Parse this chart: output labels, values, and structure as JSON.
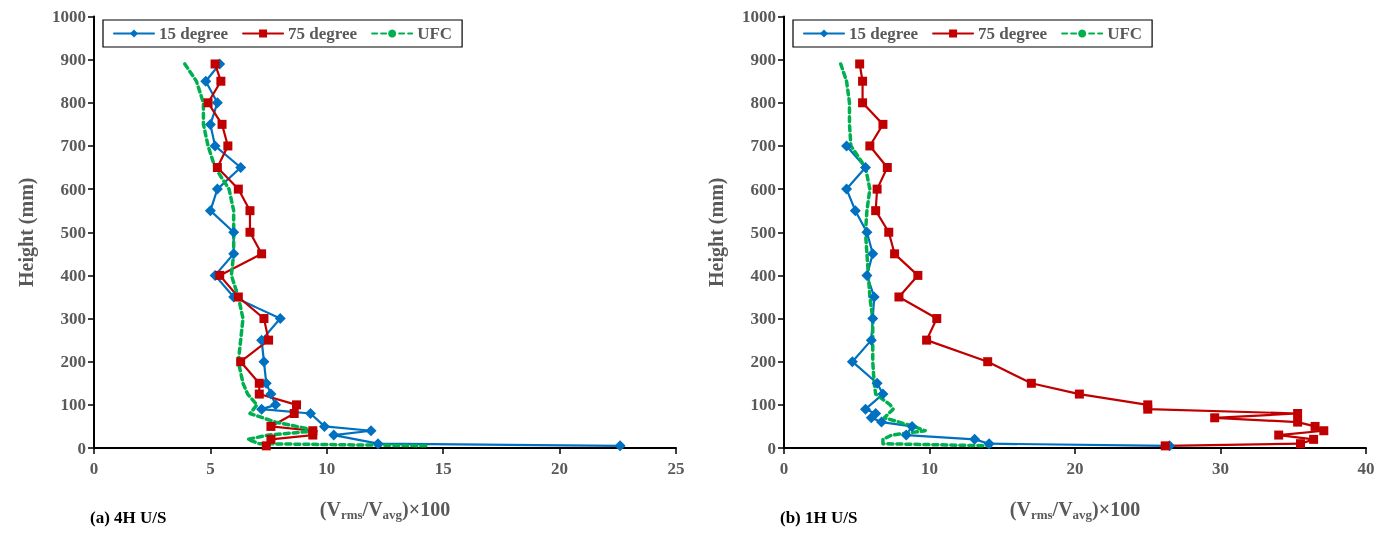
{
  "chart_data": [
    {
      "type": "line",
      "xlabel": "(V$_{rms}$/V$_{avg}$)×100",
      "ylabel": "Height (mm)",
      "annotations": [
        "(a) 4H U/S"
      ],
      "xlim": [
        0,
        25
      ],
      "xticks": [
        0,
        5,
        10,
        15,
        20,
        25
      ],
      "ylim": [
        0,
        1000
      ],
      "yticks": [
        0,
        100,
        200,
        300,
        400,
        500,
        600,
        700,
        800,
        900,
        1000
      ],
      "grid": false,
      "legend": "top left",
      "series": [
        {
          "name": "15 degree",
          "color": "#0070c0",
          "marker": "diamond",
          "line_style": "solid",
          "x": [
            5.4,
            4.8,
            5.3,
            5.0,
            5.2,
            6.3,
            5.3,
            5.0,
            6.0,
            6.0,
            5.2,
            6.0,
            8.0,
            7.2,
            7.3,
            7.4,
            7.6,
            7.8,
            7.2,
            9.3,
            9.9,
            11.9,
            10.3,
            12.2,
            22.6
          ],
          "values": [
            890,
            850,
            800,
            750,
            700,
            650,
            600,
            550,
            500,
            450,
            400,
            350,
            300,
            250,
            200,
            150,
            125,
            100,
            90,
            80,
            50,
            40,
            30,
            10,
            5
          ]
        },
        {
          "name": "75 degree",
          "color": "#c00000",
          "marker": "square",
          "line_style": "solid",
          "x": [
            5.2,
            5.45,
            4.9,
            5.5,
            5.75,
            5.3,
            6.2,
            6.7,
            6.7,
            7.2,
            5.4,
            6.2,
            7.3,
            7.5,
            6.3,
            7.1,
            7.1,
            8.7,
            8.6,
            7.6,
            9.4,
            9.4,
            7.6,
            7.4
          ],
          "values": [
            890,
            850,
            800,
            750,
            700,
            650,
            600,
            550,
            500,
            450,
            400,
            350,
            300,
            250,
            200,
            150,
            125,
            100,
            80,
            50,
            40,
            30,
            20,
            5
          ]
        },
        {
          "name": "UFC",
          "color": "#00b050",
          "marker": "none",
          "line_style": "dashed",
          "x": [
            3.9,
            4.4,
            4.7,
            4.7,
            4.9,
            5.2,
            5.8,
            6.0,
            6.0,
            6.0,
            5.9,
            6.2,
            6.4,
            6.3,
            6.2,
            6.4,
            6.6,
            7.0,
            6.7,
            7.8,
            9.6,
            7.5,
            6.6,
            7.1,
            14.4
          ],
          "values": [
            890,
            850,
            800,
            750,
            700,
            650,
            600,
            550,
            500,
            450,
            400,
            350,
            300,
            250,
            200,
            150,
            125,
            100,
            80,
            60,
            40,
            30,
            20,
            10,
            5
          ]
        }
      ]
    },
    {
      "type": "line",
      "xlabel": "(V$_{rms}$/V$_{avg}$)×100",
      "ylabel": "Height (mm)",
      "annotations": [
        "(b) 1H U/S"
      ],
      "xlim": [
        0,
        40
      ],
      "xticks": [
        0,
        10,
        20,
        30,
        40
      ],
      "ylim": [
        0,
        1000
      ],
      "yticks": [
        0,
        100,
        200,
        300,
        400,
        500,
        600,
        700,
        800,
        900,
        1000
      ],
      "grid": false,
      "legend": "top left",
      "series": [
        {
          "name": "15 degree",
          "color": "#0070c0",
          "marker": "diamond",
          "line_style": "solid",
          "x": [
            4.3,
            5.6,
            4.3,
            4.9,
            5.7,
            6.1,
            5.7,
            6.2,
            6.1,
            6.0,
            4.7,
            6.4,
            6.8,
            5.6,
            6.3,
            6.0,
            6.7,
            8.8,
            8.4,
            13.1,
            14.1,
            26.5
          ],
          "values": [
            700,
            650,
            600,
            550,
            500,
            450,
            400,
            350,
            300,
            250,
            200,
            150,
            125,
            90,
            80,
            70,
            60,
            50,
            30,
            20,
            10,
            5
          ]
        },
        {
          "name": "75 degree",
          "color": "#c00000",
          "marker": "square",
          "line_style": "solid",
          "x": [
            5.2,
            5.4,
            5.4,
            6.8,
            5.9,
            7.1,
            6.4,
            6.3,
            7.2,
            7.6,
            9.2,
            7.9,
            10.5,
            9.8,
            14.0,
            17.0,
            20.3,
            25.0,
            25.0,
            35.3,
            29.6,
            35.3,
            36.5,
            37.1,
            34.0,
            36.4,
            35.5,
            26.2
          ],
          "values": [
            890,
            850,
            800,
            750,
            700,
            650,
            600,
            550,
            500,
            450,
            400,
            350,
            300,
            250,
            200,
            150,
            125,
            100,
            90,
            80,
            70,
            60,
            50,
            40,
            30,
            20,
            10,
            5
          ]
        },
        {
          "name": "UFC",
          "color": "#00b050",
          "marker": "none",
          "line_style": "dashed",
          "x": [
            3.9,
            4.3,
            4.5,
            4.5,
            4.6,
            5.6,
            5.9,
            5.7,
            5.6,
            5.7,
            5.8,
            5.9,
            6.1,
            6.1,
            6.1,
            6.2,
            6.3,
            7.3,
            7.5,
            6.9,
            8.9,
            9.7,
            7.4,
            6.8,
            6.8,
            14.2
          ],
          "values": [
            890,
            850,
            800,
            750,
            700,
            650,
            600,
            550,
            500,
            450,
            400,
            350,
            300,
            250,
            200,
            150,
            125,
            100,
            90,
            70,
            50,
            40,
            30,
            20,
            10,
            5
          ]
        }
      ]
    }
  ]
}
